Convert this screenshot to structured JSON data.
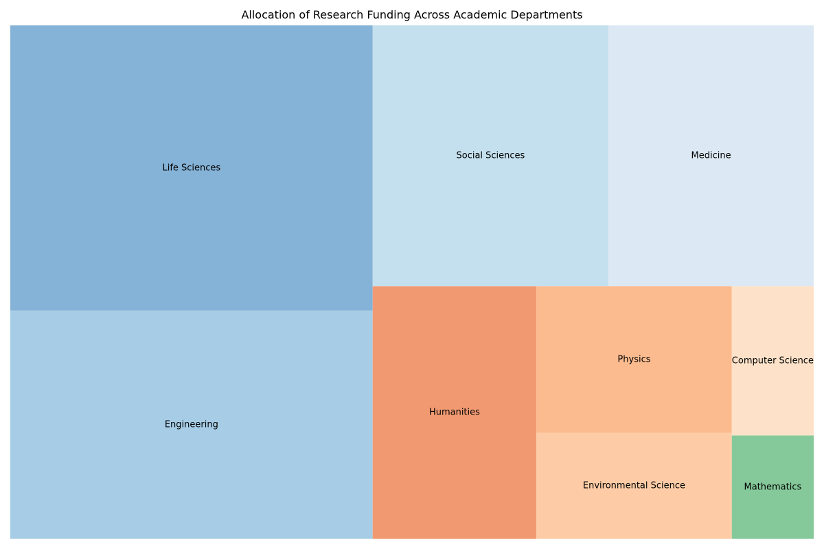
{
  "chart_data": {
    "type": "treemap",
    "title": "Allocation of Research Funding Across Academic Departments",
    "items": [
      {
        "label": "Life Sciences",
        "value": 22.0,
        "color": "#85b2d7"
      },
      {
        "label": "Engineering",
        "value": 17.6,
        "color": "#a7cde6"
      },
      {
        "label": "Social Sciences",
        "value": 13.1,
        "color": "#c4dfed"
      },
      {
        "label": "Medicine",
        "value": 11.4,
        "color": "#dce8f4"
      },
      {
        "label": "Humanities",
        "value": 8.8,
        "color": "#f19a72"
      },
      {
        "label": "Physics",
        "value": 6.1,
        "color": "#fcbb8e"
      },
      {
        "label": "Environmental Science",
        "value": 4.4,
        "color": "#fdcca6"
      },
      {
        "label": "Computer Science",
        "value": 2.6,
        "color": "#fde2c9"
      },
      {
        "label": "Mathematics",
        "value": 1.8,
        "color": "#85c99a"
      }
    ]
  }
}
